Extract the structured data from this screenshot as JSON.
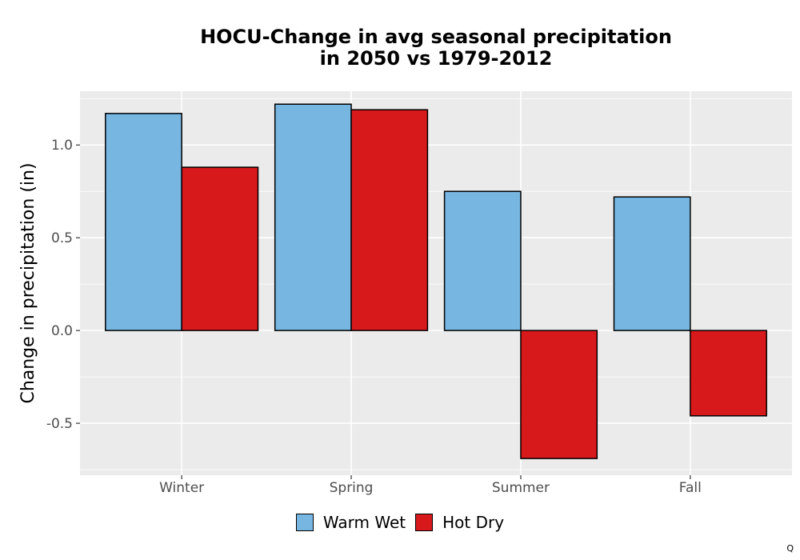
{
  "chart_data": {
    "type": "bar",
    "title_lines": [
      "HOCU-Change in avg seasonal precipitation",
      "in 2050 vs 1979-2012"
    ],
    "xlabel": "",
    "ylabel": "Change in precipitation (in)",
    "categories": [
      "Winter",
      "Spring",
      "Summer",
      "Fall"
    ],
    "series": [
      {
        "name": "Warm Wet",
        "color": "#77b6e1",
        "values": [
          1.17,
          1.22,
          0.75,
          0.72
        ]
      },
      {
        "name": "Hot Dry",
        "color": "#d7191c",
        "values": [
          0.88,
          1.19,
          -0.69,
          -0.46
        ]
      }
    ],
    "yticks": [
      -0.5,
      0.0,
      0.5,
      1.0
    ],
    "ytick_labels": [
      "-0.5",
      "0.0",
      "0.5",
      "1.0"
    ],
    "ylim": [
      -0.78,
      1.29
    ],
    "grid": true,
    "legend_position": "bottom",
    "panel_color": "#ebebeb"
  },
  "footer": {
    "corner_mark": "Q"
  }
}
